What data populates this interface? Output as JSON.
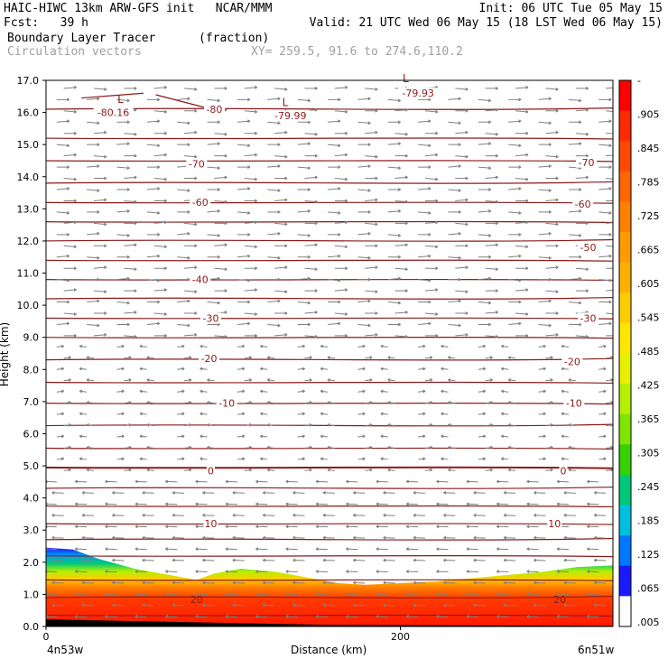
{
  "header": {
    "left_line1": "HAIC-HIWC 13km ARW-GFS init   NCAR/MMM",
    "left_line2": "Fcst:   39 h",
    "right_line1": "Init: 06 UTC Tue 05 May 15",
    "right_line2": "Valid: 21 UTC Wed 06 May 15 (18 LST Wed 06 May 15)",
    "field_name": "Boundary Layer Tracer",
    "field_units": "(fraction)",
    "vector_name": "Circulation vectors",
    "xy_text": "XY= 259.5, 91.6 to 274.6,110.2"
  },
  "colors": {
    "contour": "#8b1a1a",
    "vector": "#808080",
    "text": "#000000"
  },
  "chart_data": {
    "type": "heatmap",
    "title": "Boundary Layer Tracer",
    "ylabel": "Height (km)",
    "xlabel": "Distance (km)",
    "x_start_label": "4n53w",
    "x_end_label": "6n51w",
    "x_ticks": [
      "0",
      "200"
    ],
    "x_tick_values": [
      0,
      200
    ],
    "xlim": [
      0,
      320
    ],
    "ylim": [
      0,
      17
    ],
    "y_ticks": [
      "0.0",
      "1.0",
      "2.0",
      "3.0",
      "4.0",
      "5.0",
      "6.0",
      "7.0",
      "8.0",
      "9.0",
      "10.0",
      "11.0",
      "12.0",
      "13.0",
      "14.0",
      "15.0",
      "16.0",
      "17.0"
    ],
    "colorbar": {
      "labels": [
        "-",
        ".905",
        ".845",
        ".785",
        ".725",
        ".665",
        ".605",
        ".545",
        ".485",
        ".425",
        ".365",
        ".305",
        ".245",
        ".185",
        ".125",
        ".065",
        ".005"
      ],
      "colors": [
        "#ff0000",
        "#ff2a00",
        "#ff4800",
        "#ff6600",
        "#ff8000",
        "#ff9a00",
        "#ffb000",
        "#ffcc00",
        "#ffe600",
        "#e6f000",
        "#b4f000",
        "#7fe600",
        "#33d200",
        "#00c878",
        "#00c0e0",
        "#0078ff",
        "#1a1aff",
        "#ffffff"
      ]
    },
    "contour_labels": [
      {
        "text": "-80.16",
        "x": 38,
        "y": 16.0
      },
      {
        "text": "-80",
        "x": 95,
        "y": 16.1
      },
      {
        "text": "-79.99",
        "x": 138,
        "y": 15.9
      },
      {
        "text": "-79.93",
        "x": 210,
        "y": 16.6
      },
      {
        "text": "-70",
        "x": 85,
        "y": 14.4
      },
      {
        "text": "-70",
        "x": 305,
        "y": 14.45
      },
      {
        "text": "-60",
        "x": 87,
        "y": 13.2
      },
      {
        "text": "-60",
        "x": 303,
        "y": 13.15
      },
      {
        "text": "-50",
        "x": 306,
        "y": 11.8
      },
      {
        "text": "-40",
        "x": 87,
        "y": 10.8
      },
      {
        "text": "-30",
        "x": 93,
        "y": 9.6
      },
      {
        "text": "-30",
        "x": 306,
        "y": 9.6
      },
      {
        "text": "-20",
        "x": 92,
        "y": 8.35
      },
      {
        "text": "-20",
        "x": 297,
        "y": 8.25
      },
      {
        "text": "-10",
        "x": 102,
        "y": 6.95
      },
      {
        "text": "-10",
        "x": 298,
        "y": 6.95
      },
      {
        "text": "0",
        "x": 93,
        "y": 4.85
      },
      {
        "text": "0",
        "x": 292,
        "y": 4.85
      },
      {
        "text": "10",
        "x": 93,
        "y": 3.2
      },
      {
        "text": "10",
        "x": 287,
        "y": 3.2
      },
      {
        "text": "20",
        "x": 85,
        "y": 0.85
      },
      {
        "text": "20",
        "x": 290,
        "y": 0.85
      }
    ],
    "low_markers": [
      {
        "text": "L",
        "x": 42,
        "y": 16.3
      },
      {
        "text": "L",
        "x": 135,
        "y": 16.2
      },
      {
        "text": "L",
        "x": 203,
        "y": 16.95
      }
    ],
    "boundary_layer_top": [
      {
        "x": 0,
        "y": 2.45
      },
      {
        "x": 15,
        "y": 2.4
      },
      {
        "x": 30,
        "y": 2.1
      },
      {
        "x": 50,
        "y": 1.8
      },
      {
        "x": 70,
        "y": 1.6
      },
      {
        "x": 85,
        "y": 1.45
      },
      {
        "x": 95,
        "y": 1.65
      },
      {
        "x": 110,
        "y": 1.8
      },
      {
        "x": 130,
        "y": 1.7
      },
      {
        "x": 150,
        "y": 1.5
      },
      {
        "x": 165,
        "y": 1.35
      },
      {
        "x": 180,
        "y": 1.3
      },
      {
        "x": 200,
        "y": 1.35
      },
      {
        "x": 220,
        "y": 1.4
      },
      {
        "x": 240,
        "y": 1.5
      },
      {
        "x": 260,
        "y": 1.6
      },
      {
        "x": 280,
        "y": 1.7
      },
      {
        "x": 300,
        "y": 1.85
      },
      {
        "x": 320,
        "y": 1.9
      }
    ]
  }
}
